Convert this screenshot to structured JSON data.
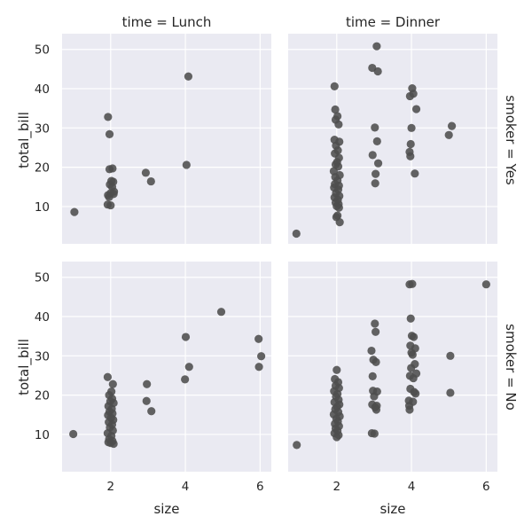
{
  "chart_data": {
    "type": "scatter",
    "x_label": "size",
    "y_label": "total_bill",
    "xlim": [
      0.7,
      6.3
    ],
    "ylim": [
      0.5,
      54
    ],
    "x_ticks": [
      2,
      4,
      6
    ],
    "y_ticks": [
      10,
      20,
      30,
      40,
      50
    ],
    "grid": true,
    "column_titles": [
      "time = Lunch",
      "time = Dinner"
    ],
    "row_titles": [
      "smoker = Yes",
      "smoker = No"
    ],
    "facets": [
      {
        "time": "Lunch",
        "smoker": "Yes",
        "points": [
          [
            1.03,
            8.6
          ],
          [
            1.93,
            32.8
          ],
          [
            1.97,
            28.4
          ],
          [
            1.97,
            19.5
          ],
          [
            2.05,
            19.7
          ],
          [
            2.02,
            16.5
          ],
          [
            2.07,
            16.3
          ],
          [
            1.98,
            15.6
          ],
          [
            2.04,
            15.0
          ],
          [
            2.09,
            13.8
          ],
          [
            2.0,
            13.4
          ],
          [
            1.93,
            12.9
          ],
          [
            1.96,
            12.4
          ],
          [
            2.08,
            13.2
          ],
          [
            1.92,
            10.5
          ],
          [
            2.0,
            10.3
          ],
          [
            2.94,
            18.6
          ],
          [
            3.08,
            16.4
          ],
          [
            4.03,
            20.6
          ],
          [
            4.08,
            43.1
          ]
        ]
      },
      {
        "time": "Dinner",
        "smoker": "Yes",
        "points": [
          [
            0.92,
            3.1
          ],
          [
            1.94,
            40.6
          ],
          [
            1.96,
            34.7
          ],
          [
            2.02,
            33.0
          ],
          [
            1.97,
            32.1
          ],
          [
            2.05,
            30.9
          ],
          [
            1.94,
            27.0
          ],
          [
            2.07,
            26.5
          ],
          [
            1.98,
            25.5
          ],
          [
            2.03,
            24.3
          ],
          [
            1.95,
            23.5
          ],
          [
            2.06,
            22.4
          ],
          [
            2.01,
            21.3
          ],
          [
            1.97,
            20.7
          ],
          [
            2.04,
            20.2
          ],
          [
            1.92,
            19.0
          ],
          [
            2.08,
            18.0
          ],
          [
            1.96,
            17.5
          ],
          [
            2.02,
            16.6
          ],
          [
            1.95,
            15.7
          ],
          [
            2.06,
            15.3
          ],
          [
            1.93,
            14.8
          ],
          [
            2.04,
            14.3
          ],
          [
            1.98,
            13.4
          ],
          [
            2.07,
            12.7
          ],
          [
            1.94,
            12.3
          ],
          [
            2.03,
            11.7
          ],
          [
            1.97,
            11.0
          ],
          [
            2.05,
            10.6
          ],
          [
            2.0,
            10.1
          ],
          [
            2.06,
            9.7
          ],
          [
            2.02,
            7.7
          ],
          [
            1.99,
            7.3
          ],
          [
            2.08,
            6.0
          ],
          [
            2.95,
            45.3
          ],
          [
            3.07,
            50.8
          ],
          [
            3.1,
            44.4
          ],
          [
            3.02,
            30.1
          ],
          [
            3.08,
            26.6
          ],
          [
            2.96,
            23.1
          ],
          [
            3.11,
            21.0
          ],
          [
            3.04,
            18.3
          ],
          [
            3.03,
            15.9
          ],
          [
            3.96,
            38.1
          ],
          [
            4.02,
            40.1
          ],
          [
            4.05,
            38.7
          ],
          [
            4.13,
            34.8
          ],
          [
            4.0,
            30.0
          ],
          [
            3.98,
            25.9
          ],
          [
            3.95,
            23.9
          ],
          [
            3.97,
            22.8
          ],
          [
            4.09,
            18.4
          ],
          [
            5.0,
            28.2
          ],
          [
            5.08,
            30.5
          ]
        ]
      },
      {
        "time": "Lunch",
        "smoker": "No",
        "points": [
          [
            1.0,
            10.1
          ],
          [
            1.92,
            24.6
          ],
          [
            2.06,
            22.8
          ],
          [
            2.02,
            20.9
          ],
          [
            1.96,
            20.0
          ],
          [
            2.04,
            19.1
          ],
          [
            1.99,
            18.4
          ],
          [
            2.08,
            18.0
          ],
          [
            1.94,
            17.2
          ],
          [
            2.03,
            16.5
          ],
          [
            1.97,
            15.8
          ],
          [
            2.05,
            15.3
          ],
          [
            1.93,
            14.9
          ],
          [
            2.01,
            14.2
          ],
          [
            2.07,
            13.7
          ],
          [
            1.95,
            13.1
          ],
          [
            2.04,
            12.5
          ],
          [
            1.98,
            11.8
          ],
          [
            2.06,
            11.0
          ],
          [
            1.92,
            10.3
          ],
          [
            2.02,
            9.6
          ],
          [
            1.96,
            8.8
          ],
          [
            2.05,
            8.3
          ],
          [
            1.94,
            8.0
          ],
          [
            2.08,
            7.6
          ],
          [
            2.0,
            7.8
          ],
          [
            2.97,
            22.8
          ],
          [
            2.96,
            18.5
          ],
          [
            3.09,
            15.9
          ],
          [
            3.99,
            24.0
          ],
          [
            4.01,
            34.8
          ],
          [
            4.1,
            27.2
          ],
          [
            4.96,
            41.2
          ],
          [
            5.96,
            34.3
          ],
          [
            6.03,
            29.9
          ],
          [
            5.97,
            27.2
          ]
        ]
      },
      {
        "time": "Dinner",
        "smoker": "No",
        "points": [
          [
            0.93,
            7.3
          ],
          [
            2.0,
            26.4
          ],
          [
            1.95,
            24.1
          ],
          [
            2.04,
            23.3
          ],
          [
            1.97,
            22.4
          ],
          [
            2.06,
            21.8
          ],
          [
            1.93,
            21.0
          ],
          [
            2.02,
            20.3
          ],
          [
            1.98,
            19.6
          ],
          [
            2.05,
            18.8
          ],
          [
            1.94,
            18.2
          ],
          [
            2.07,
            17.6
          ],
          [
            2.01,
            17.0
          ],
          [
            1.96,
            16.4
          ],
          [
            2.04,
            15.7
          ],
          [
            1.92,
            15.1
          ],
          [
            2.08,
            14.6
          ],
          [
            1.99,
            14.0
          ],
          [
            2.03,
            13.3
          ],
          [
            1.95,
            12.7
          ],
          [
            2.06,
            12.1
          ],
          [
            1.97,
            11.5
          ],
          [
            2.02,
            10.9
          ],
          [
            1.94,
            10.3
          ],
          [
            2.05,
            9.8
          ],
          [
            2.0,
            9.3
          ],
          [
            2.93,
            31.3
          ],
          [
            2.98,
            29.0
          ],
          [
            3.05,
            28.4
          ],
          [
            3.02,
            38.2
          ],
          [
            3.04,
            36.1
          ],
          [
            2.96,
            24.8
          ],
          [
            3.08,
            20.9
          ],
          [
            2.97,
            21.1
          ],
          [
            3.0,
            19.7
          ],
          [
            2.95,
            17.6
          ],
          [
            3.07,
            17.3
          ],
          [
            3.03,
            16.9
          ],
          [
            3.06,
            16.3
          ],
          [
            2.94,
            10.3
          ],
          [
            3.01,
            10.2
          ],
          [
            3.95,
            48.2
          ],
          [
            4.02,
            48.3
          ],
          [
            3.98,
            39.5
          ],
          [
            4.01,
            35.1
          ],
          [
            4.06,
            34.8
          ],
          [
            3.97,
            32.6
          ],
          [
            4.1,
            31.9
          ],
          [
            4.0,
            30.8
          ],
          [
            4.03,
            30.3
          ],
          [
            4.09,
            27.9
          ],
          [
            3.99,
            26.9
          ],
          [
            4.13,
            25.5
          ],
          [
            3.96,
            24.9
          ],
          [
            4.05,
            24.3
          ],
          [
            3.97,
            21.6
          ],
          [
            4.07,
            20.8
          ],
          [
            4.11,
            20.4
          ],
          [
            3.93,
            18.6
          ],
          [
            4.04,
            18.3
          ],
          [
            3.94,
            17.3
          ],
          [
            3.95,
            16.3
          ],
          [
            5.04,
            30.0
          ],
          [
            5.04,
            20.6
          ],
          [
            6.0,
            48.2
          ]
        ]
      }
    ]
  }
}
